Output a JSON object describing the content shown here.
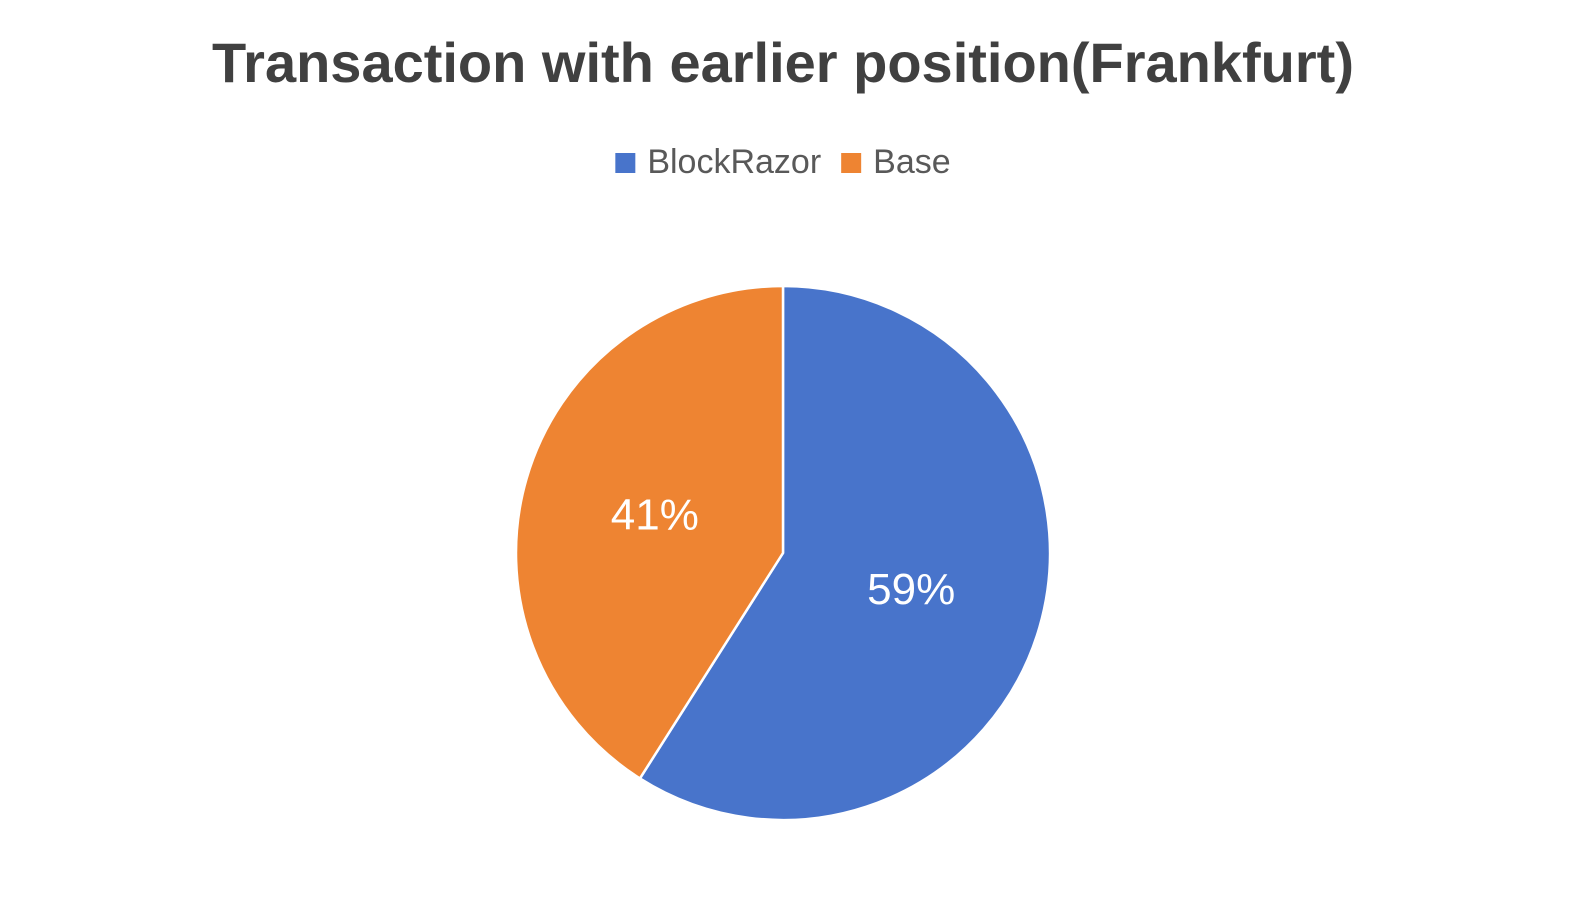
{
  "chart_data": {
    "type": "pie",
    "title": "Transaction with earlier position(Frankfurt)",
    "categories": [
      "BlockRazor",
      "Base"
    ],
    "values": [
      59,
      41
    ],
    "value_labels": [
      "59%",
      "41%"
    ],
    "colors": [
      "#4874cb",
      "#ee8432"
    ],
    "legend": "top"
  }
}
